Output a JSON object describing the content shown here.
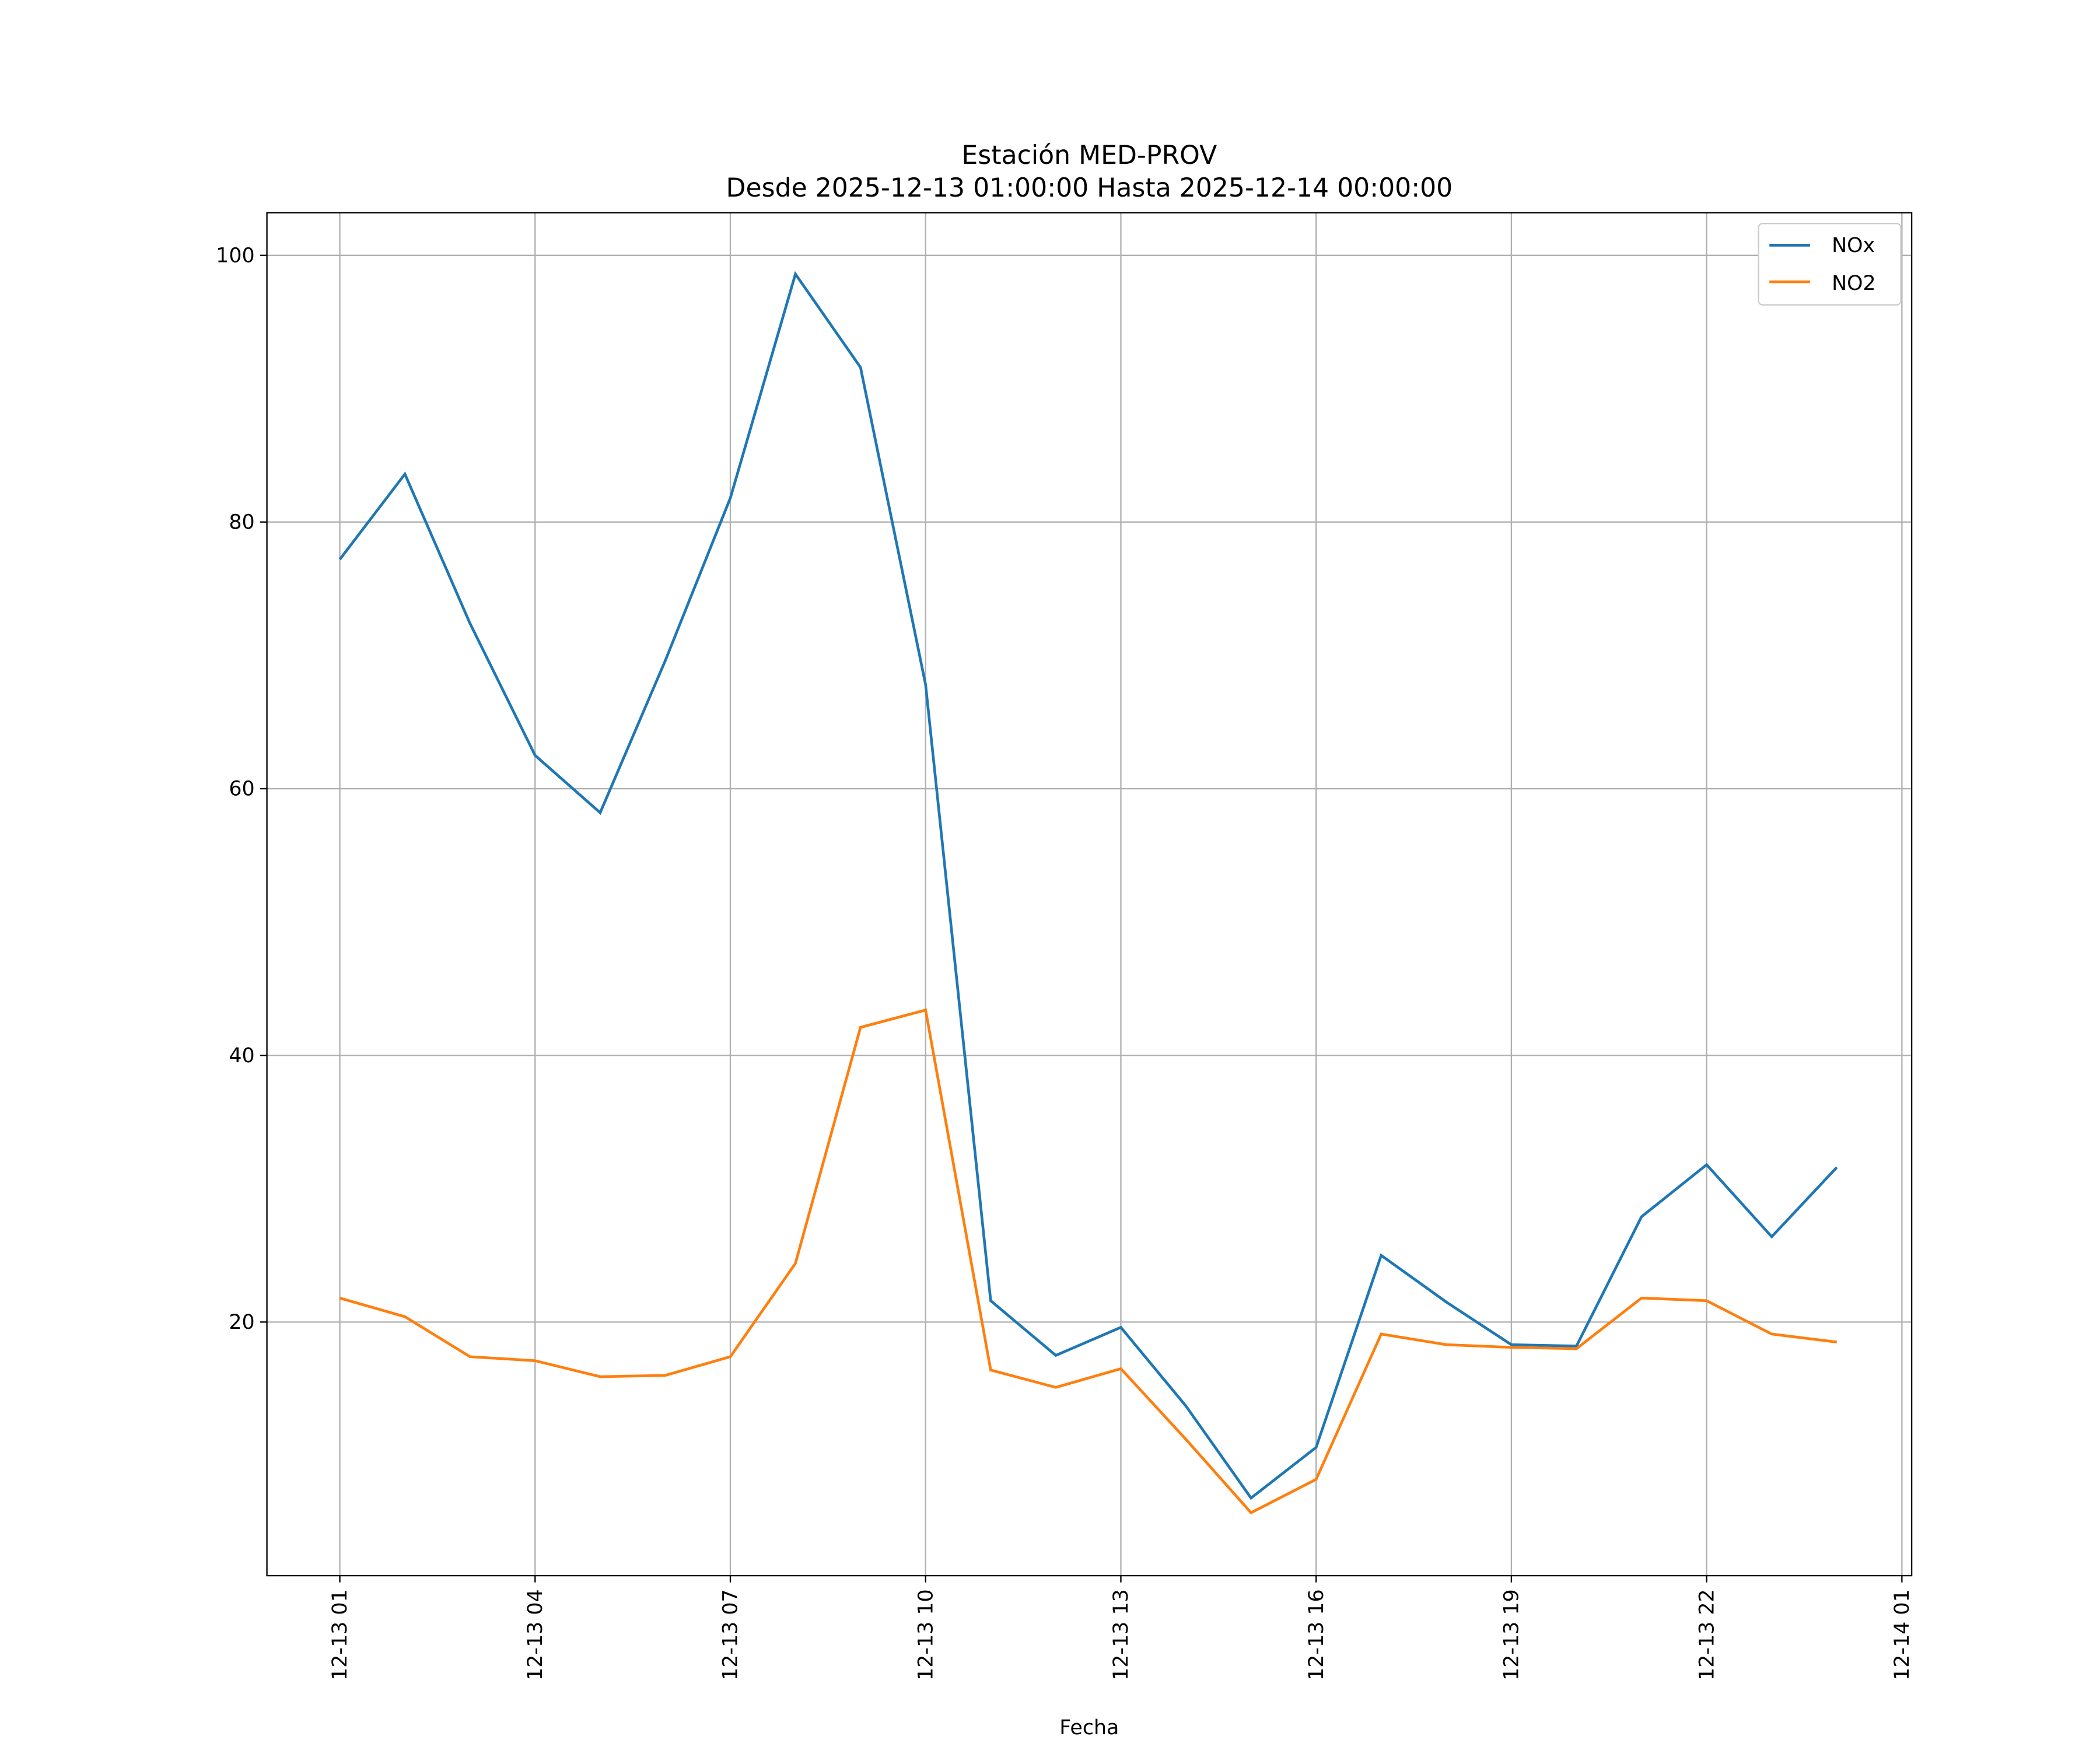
{
  "chart_data": {
    "type": "line",
    "title": "Estación MED-PROV",
    "subtitle": "Desde 2025-12-13 01:00:00 Hasta 2025-12-14 00:00:00",
    "xlabel": "Fecha",
    "ylabel": "",
    "x": [
      "2025-12-13 01:00",
      "2025-12-13 02:00",
      "2025-12-13 03:00",
      "2025-12-13 04:00",
      "2025-12-13 05:00",
      "2025-12-13 06:00",
      "2025-12-13 07:00",
      "2025-12-13 08:00",
      "2025-12-13 09:00",
      "2025-12-13 10:00",
      "2025-12-13 11:00",
      "2025-12-13 12:00",
      "2025-12-13 13:00",
      "2025-12-13 14:00",
      "2025-12-13 15:00",
      "2025-12-13 16:00",
      "2025-12-13 17:00",
      "2025-12-13 18:00",
      "2025-12-13 19:00",
      "2025-12-13 20:00",
      "2025-12-13 21:00",
      "2025-12-13 22:00",
      "2025-12-13 23:00",
      "2025-12-14 00:00"
    ],
    "series": [
      {
        "name": "NOx",
        "color": "#1f77b4",
        "values": [
          77.2,
          83.6,
          72.4,
          62.5,
          58.2,
          69.6,
          81.8,
          98.6,
          91.6,
          67.8,
          21.6,
          17.5,
          19.6,
          13.7,
          6.8,
          10.6,
          25.0,
          21.5,
          18.3,
          18.2,
          27.9,
          31.8,
          26.4,
          31.6
        ]
      },
      {
        "name": "NO2",
        "color": "#ff7f0e",
        "values": [
          21.8,
          20.4,
          17.4,
          17.1,
          15.9,
          16.0,
          17.4,
          24.4,
          42.1,
          43.4,
          16.4,
          15.1,
          16.5,
          11.2,
          5.7,
          8.2,
          19.1,
          18.3,
          18.1,
          18.0,
          21.8,
          21.6,
          19.1,
          18.5
        ]
      }
    ],
    "yticks": [
      "20",
      "40",
      "60",
      "80",
      "100"
    ],
    "ytick_values": [
      20,
      40,
      60,
      80,
      100
    ],
    "xticks": [
      "12-13 01",
      "12-13 04",
      "12-13 07",
      "12-13 10",
      "12-13 13",
      "12-13 16",
      "12-13 19",
      "12-13 22",
      "12-14 01"
    ],
    "xtick_hours": [
      0,
      3,
      6,
      9,
      12,
      15,
      18,
      21,
      24
    ],
    "xlim_hours": [
      -1.12,
      24.15
    ],
    "ylim": [
      0.98,
      103.2
    ],
    "grid": true,
    "legend": "upper-right"
  }
}
